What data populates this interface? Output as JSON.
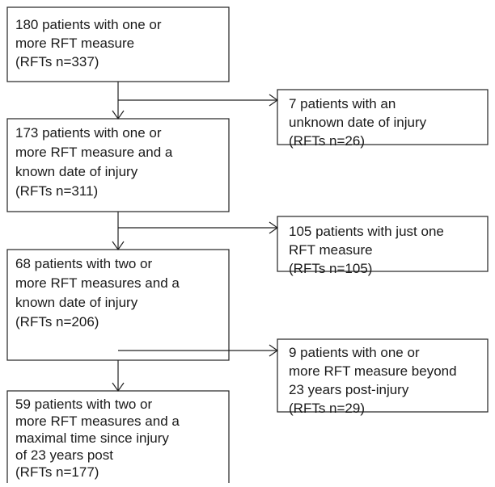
{
  "nodes": [
    {
      "lines": [
        "180 patients with one or",
        "more RFT measure",
        "(RFTs n=337)"
      ]
    },
    {
      "lines": [
        "173 patients with one or",
        "more RFT measure and a",
        "known date of injury",
        "(RFTs n=311)"
      ]
    },
    {
      "lines": [
        "68 patients with two or",
        "more RFT measures and a",
        "known date of injury",
        "(RFTs n=206)"
      ]
    },
    {
      "lines": [
        "59 patients with two or",
        "more RFT measures and a",
        "maximal time since injury",
        "of 23 years post",
        "(RFTs n=177)"
      ]
    }
  ],
  "exclusions": [
    {
      "lines": [
        "7 patients with an",
        "unknown date of injury",
        "(RFTs n=26)"
      ]
    },
    {
      "lines": [
        "105 patients with just one",
        "RFT measure",
        "(RFTs n=105)"
      ]
    },
    {
      "lines": [
        "9 patients with one or",
        "more RFT measure beyond",
        "23 years post-injury",
        "(RFTs n=29)"
      ]
    }
  ]
}
